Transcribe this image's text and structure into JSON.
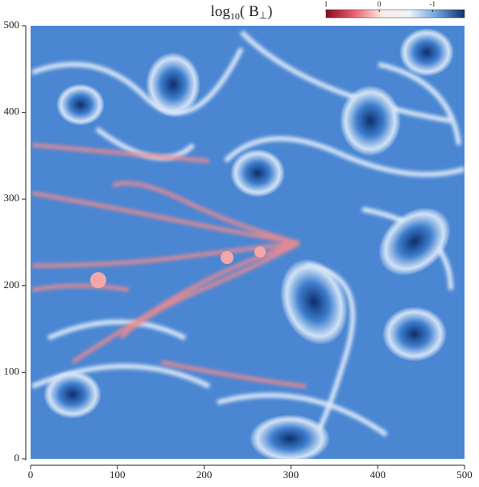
{
  "chart_data": {
    "type": "heatmap",
    "title_parts": [
      "log",
      "10",
      "( B",
      "⊥",
      ")"
    ],
    "xlim": [
      0,
      500
    ],
    "xticks": [
      0,
      100,
      200,
      300,
      400,
      500
    ],
    "ylim": [
      0,
      500
    ],
    "yticks": [
      0,
      100,
      200,
      300,
      400,
      500
    ],
    "colorbar": {
      "lim": [
        1,
        -1.6
      ],
      "ticks": [
        1,
        0,
        -1
      ],
      "colors": [
        "#8b0a1e",
        "#e8606a",
        "#fde8e4",
        "#eef4fb",
        "#6ea3dc",
        "#0d2f6e"
      ]
    }
  }
}
